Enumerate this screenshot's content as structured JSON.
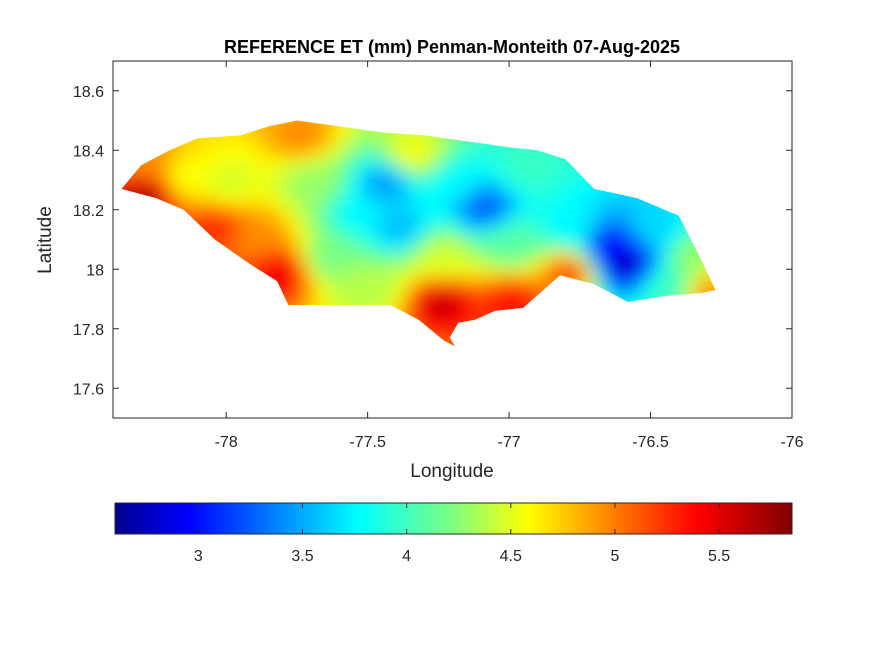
{
  "title": "REFERENCE ET (mm) Penman-Monteith 07-Aug-2025",
  "xlabel": "Longitude",
  "ylabel": "Latitude",
  "x_ticks": [
    "-78",
    "-77.5",
    "-77",
    "-76.5",
    "-76"
  ],
  "y_ticks": [
    "18.6",
    "18.4",
    "18.2",
    "18",
    "17.8",
    "17.6"
  ],
  "colorbar_ticks": [
    "3",
    "3.5",
    "4",
    "4.5",
    "5",
    "5.5"
  ],
  "chart_data": {
    "type": "heatmap",
    "title": "REFERENCE ET (mm) Penman-Monteith 07-Aug-2025",
    "xlabel": "Longitude",
    "ylabel": "Latitude",
    "xlim": [
      -78.4,
      -76.0
    ],
    "ylim": [
      17.5,
      18.7
    ],
    "colormap": "jet",
    "color_range": [
      2.6,
      5.85
    ],
    "colorbar_ticks": [
      3,
      3.5,
      4,
      4.5,
      5,
      5.5
    ],
    "grid": false,
    "colorbar_position": "bottom",
    "outline": [
      [
        -78.37,
        18.27
      ],
      [
        -78.3,
        18.35
      ],
      [
        -78.2,
        18.4
      ],
      [
        -78.1,
        18.44
      ],
      [
        -77.95,
        18.45
      ],
      [
        -77.85,
        18.48
      ],
      [
        -77.75,
        18.5
      ],
      [
        -77.6,
        18.48
      ],
      [
        -77.45,
        18.46
      ],
      [
        -77.3,
        18.45
      ],
      [
        -77.15,
        18.43
      ],
      [
        -77.0,
        18.41
      ],
      [
        -76.9,
        18.4
      ],
      [
        -76.8,
        18.37
      ],
      [
        -76.7,
        18.27
      ],
      [
        -76.55,
        18.24
      ],
      [
        -76.4,
        18.18
      ],
      [
        -76.33,
        18.05
      ],
      [
        -76.27,
        17.93
      ],
      [
        -76.32,
        17.92
      ],
      [
        -76.45,
        17.91
      ],
      [
        -76.58,
        17.89
      ],
      [
        -76.7,
        17.95
      ],
      [
        -76.82,
        17.98
      ],
      [
        -76.95,
        17.87
      ],
      [
        -77.05,
        17.86
      ],
      [
        -77.12,
        17.83
      ],
      [
        -77.18,
        17.82
      ],
      [
        -77.21,
        17.77
      ],
      [
        -77.19,
        17.74
      ],
      [
        -77.23,
        17.76
      ],
      [
        -77.32,
        17.83
      ],
      [
        -77.42,
        17.88
      ],
      [
        -77.55,
        17.88
      ],
      [
        -77.7,
        17.88
      ],
      [
        -77.78,
        17.88
      ],
      [
        -77.82,
        17.96
      ],
      [
        -77.92,
        18.02
      ],
      [
        -78.04,
        18.1
      ],
      [
        -78.15,
        18.2
      ],
      [
        -78.25,
        18.24
      ],
      [
        -78.37,
        18.27
      ]
    ],
    "sample_points": [
      {
        "lon": -78.3,
        "lat": 18.26,
        "et": 5.7
      },
      {
        "lon": -78.3,
        "lat": 18.36,
        "et": 5.0
      },
      {
        "lon": -78.15,
        "lat": 18.32,
        "et": 4.6
      },
      {
        "lon": -78.05,
        "lat": 18.15,
        "et": 5.3
      },
      {
        "lon": -78.0,
        "lat": 18.3,
        "et": 4.5
      },
      {
        "lon": -77.9,
        "lat": 18.12,
        "et": 5.0
      },
      {
        "lon": -77.82,
        "lat": 18.0,
        "et": 5.5
      },
      {
        "lon": -77.75,
        "lat": 18.46,
        "et": 5.0
      },
      {
        "lon": -77.7,
        "lat": 18.3,
        "et": 4.3
      },
      {
        "lon": -77.65,
        "lat": 18.05,
        "et": 4.2
      },
      {
        "lon": -77.55,
        "lat": 18.2,
        "et": 3.8
      },
      {
        "lon": -77.5,
        "lat": 17.95,
        "et": 4.4
      },
      {
        "lon": -77.45,
        "lat": 18.3,
        "et": 3.5
      },
      {
        "lon": -77.4,
        "lat": 18.15,
        "et": 3.6
      },
      {
        "lon": -77.35,
        "lat": 18.4,
        "et": 4.6
      },
      {
        "lon": -77.25,
        "lat": 17.9,
        "et": 5.6
      },
      {
        "lon": -77.25,
        "lat": 18.05,
        "et": 4.5
      },
      {
        "lon": -77.2,
        "lat": 18.3,
        "et": 3.8
      },
      {
        "lon": -77.1,
        "lat": 18.22,
        "et": 3.3
      },
      {
        "lon": -77.0,
        "lat": 17.9,
        "et": 5.4
      },
      {
        "lon": -77.0,
        "lat": 18.1,
        "et": 4.1
      },
      {
        "lon": -76.95,
        "lat": 18.35,
        "et": 4.0
      },
      {
        "lon": -76.8,
        "lat": 18.15,
        "et": 3.8
      },
      {
        "lon": -76.8,
        "lat": 18.0,
        "et": 5.2
      },
      {
        "lon": -76.65,
        "lat": 18.08,
        "et": 3.0
      },
      {
        "lon": -76.6,
        "lat": 18.03,
        "et": 2.8
      },
      {
        "lon": -76.5,
        "lat": 18.15,
        "et": 3.7
      },
      {
        "lon": -76.45,
        "lat": 17.95,
        "et": 4.0
      },
      {
        "lon": -76.35,
        "lat": 18.05,
        "et": 4.3
      },
      {
        "lon": -76.3,
        "lat": 17.93,
        "et": 5.0
      }
    ]
  }
}
